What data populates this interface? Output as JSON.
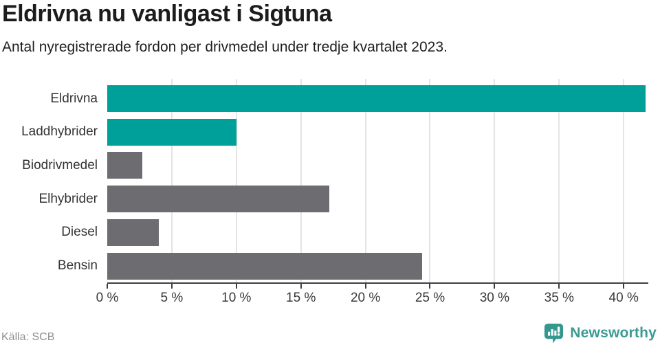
{
  "header": {
    "title": "Eldrivna nu vanligast i Sigtuna",
    "subtitle": "Antal nyregistrerade fordon per drivmedel under tredje kvartalet 2023."
  },
  "footer": {
    "source": "Källa: SCB",
    "brand_name": "Newsworthy"
  },
  "colors": {
    "teal": "#00a09a",
    "gray": "#6d6c71",
    "axis": "#3f3f3f",
    "gridline": "#e4e4e4",
    "brand_teal": "#3b9a94"
  },
  "chart_data": {
    "type": "bar",
    "orientation": "horizontal",
    "title": "Eldrivna nu vanligast i Sigtuna",
    "subtitle": "Antal nyregistrerade fordon per drivmedel under tredje kvartalet 2023.",
    "categories": [
      "Eldrivna",
      "Laddhybrider",
      "Biodrivmedel",
      "Elhybrider",
      "Diesel",
      "Bensin"
    ],
    "values": [
      41.7,
      10.0,
      2.7,
      17.2,
      4.0,
      24.4
    ],
    "unit": "%",
    "bar_colors": [
      "#00a09a",
      "#00a09a",
      "#6d6c71",
      "#6d6c71",
      "#6d6c71",
      "#6d6c71"
    ],
    "xlabel": "",
    "ylabel": "",
    "xlim": [
      0,
      41.8
    ],
    "x_tick_values": [
      0,
      5,
      10,
      15,
      20,
      25,
      30,
      35,
      40
    ],
    "x_tick_labels": [
      "0 %",
      "5 %",
      "10 %",
      "15 %",
      "20 %",
      "25 %",
      "30 %",
      "35 %",
      "40 %"
    ],
    "grid": true,
    "legend": false
  }
}
